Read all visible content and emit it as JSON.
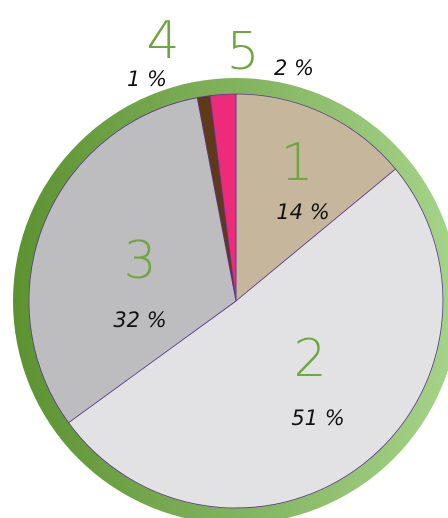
{
  "chart_data": {
    "type": "pie",
    "slices": [
      {
        "label": "1",
        "value": 14,
        "value_label": "14 %",
        "color": "#c6b79c"
      },
      {
        "label": "2",
        "value": 51,
        "value_label": "51 %",
        "color": "#e2e2e5"
      },
      {
        "label": "3",
        "value": 32,
        "value_label": "32 %",
        "color": "#bdbdbf"
      },
      {
        "label": "4",
        "value": 1,
        "value_label": "1 %",
        "color": "#5e3a1b"
      },
      {
        "label": "5",
        "value": 2,
        "value_label": "2 %",
        "color": "#ee2a7b"
      }
    ],
    "label_color": "#6ea640",
    "ring_colors": [
      "#5c9230",
      "#a6d48a"
    ],
    "start_angle": "top",
    "direction": "clockwise"
  }
}
